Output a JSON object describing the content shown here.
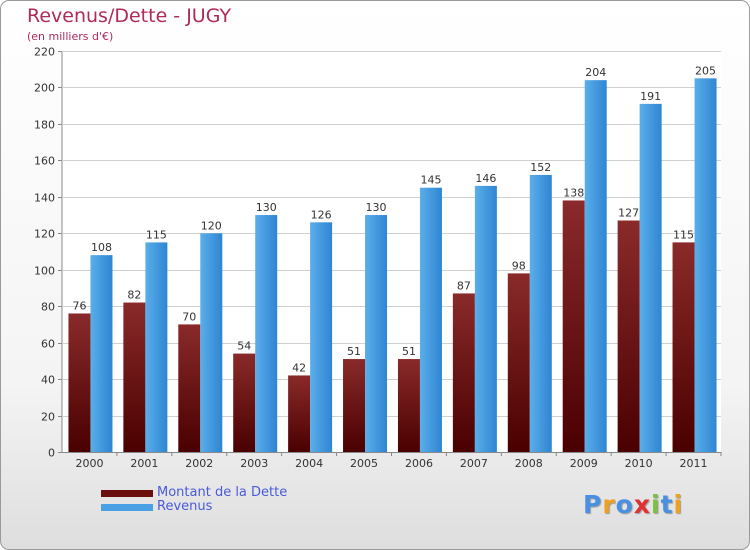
{
  "chart_data": {
    "type": "bar",
    "title": "Revenus/Dette - JUGY",
    "subtitle": "(en milliers d'€)",
    "categories": [
      "2000",
      "2001",
      "2002",
      "2003",
      "2004",
      "2005",
      "2006",
      "2007",
      "2008",
      "2009",
      "2010",
      "2011"
    ],
    "series": [
      {
        "name": "Montant de la Dette",
        "color": "#7a1414",
        "values": [
          76,
          82,
          70,
          54,
          42,
          51,
          51,
          87,
          98,
          138,
          127,
          115
        ]
      },
      {
        "name": "Revenus",
        "color": "#4aa0e4",
        "values": [
          108,
          115,
          120,
          130,
          126,
          130,
          145,
          146,
          152,
          204,
          191,
          205
        ]
      }
    ],
    "ylim": [
      0,
      220
    ],
    "yticks": [
      0,
      20,
      40,
      60,
      80,
      100,
      120,
      140,
      160,
      180,
      200,
      220
    ],
    "grid": true,
    "legend": "bottom-left"
  },
  "brand": {
    "letters": [
      {
        "char": "P",
        "color": "#4a90e2"
      },
      {
        "char": "r",
        "color": "#f0a020"
      },
      {
        "char": "o",
        "color": "#4a90e2"
      },
      {
        "char": "x",
        "color": "#e03030"
      },
      {
        "char": "i",
        "color": "#7cc040"
      },
      {
        "char": "t",
        "color": "#4a90e2"
      },
      {
        "char": "i",
        "color": "#f0a020"
      }
    ]
  }
}
